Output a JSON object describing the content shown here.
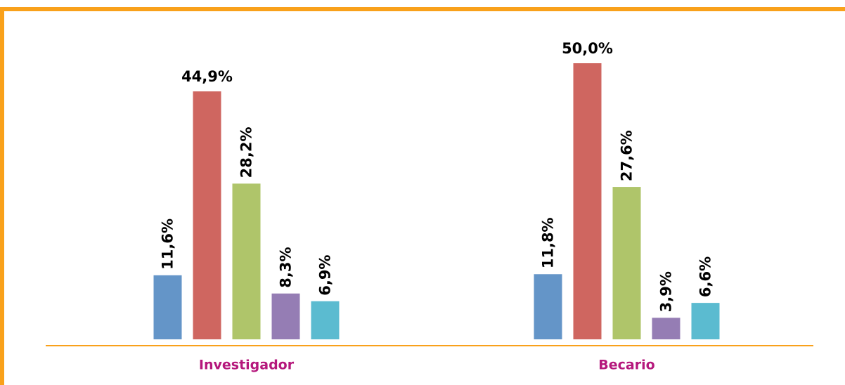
{
  "chart_data": {
    "type": "bar",
    "categories": [
      "Investigador",
      "Becario"
    ],
    "series": [
      {
        "color": "#6495c8",
        "values": [
          11.6,
          11.8
        ],
        "value_labels": [
          "11,6%",
          "11,8%"
        ]
      },
      {
        "color": "#cf6660",
        "values": [
          44.9,
          50.0
        ],
        "value_labels": [
          "44,9%",
          "50,0%"
        ]
      },
      {
        "color": "#afc56a",
        "values": [
          28.2,
          27.6
        ],
        "value_labels": [
          "28,2%",
          "27,6%"
        ]
      },
      {
        "color": "#957db4",
        "values": [
          8.3,
          3.9
        ],
        "value_labels": [
          "8,3%",
          "3,9%"
        ]
      },
      {
        "color": "#5bbbd0",
        "values": [
          6.9,
          6.6
        ],
        "value_labels": [
          "6,9%",
          "6,6%"
        ]
      }
    ]
  }
}
